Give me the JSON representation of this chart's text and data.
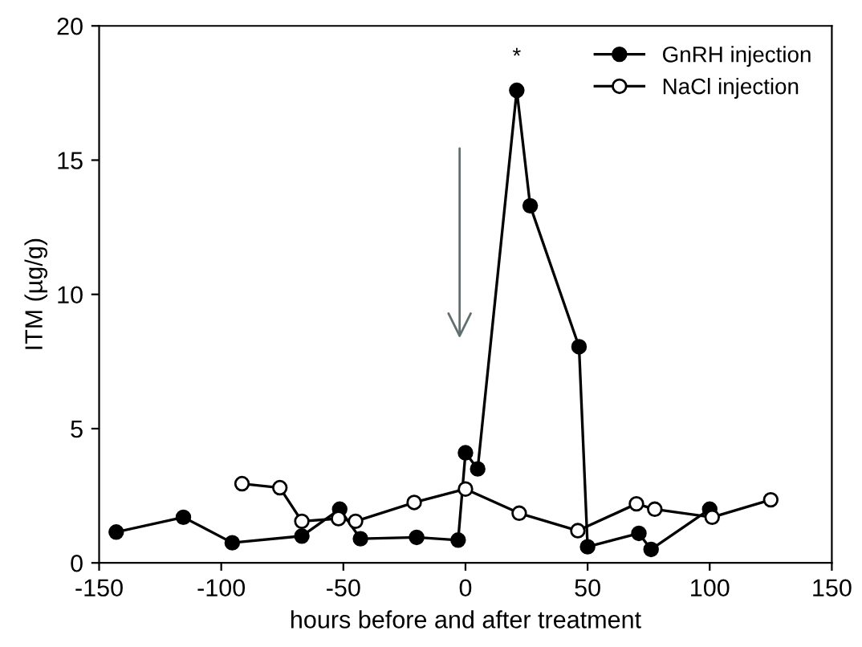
{
  "chart_data": {
    "type": "line",
    "xlabel": "hours before and after treatment",
    "ylabel": "ITM (µg/g)",
    "xlim": [
      -150,
      150
    ],
    "xticks": [
      -150,
      -100,
      -50,
      0,
      50,
      100,
      150
    ],
    "ylim": [
      0,
      20
    ],
    "yticks": [
      0,
      5,
      10,
      15,
      20
    ],
    "grid": false,
    "legend": "top right",
    "marker": "circle",
    "line_style": "solid",
    "annotations": [
      "*"
    ],
    "series": [
      {
        "name": "GnRH injection",
        "color": "#000000",
        "x": [
          -143,
          -115.5,
          -95.5,
          -67,
          -51.5,
          -43,
          -20,
          -3,
          0,
          5,
          21,
          26.5,
          46.5,
          50,
          71,
          76,
          100
        ],
        "values": [
          1.15,
          1.7,
          0.75,
          1.0,
          2.0,
          0.9,
          0.95,
          0.85,
          4.1,
          3.5,
          17.6,
          13.3,
          8.05,
          0.6,
          1.1,
          0.5,
          2.0
        ]
      },
      {
        "name": "NaCl injection",
        "color": "#000000",
        "x": [
          -91.5,
          -76,
          -67,
          -52,
          -45,
          -21,
          0,
          22,
          46,
          70,
          77.5,
          101,
          125
        ],
        "values": [
          2.95,
          2.8,
          1.55,
          1.65,
          1.55,
          2.25,
          2.75,
          1.85,
          1.2,
          2.2,
          2.0,
          1.7,
          2.35
        ]
      }
    ]
  }
}
